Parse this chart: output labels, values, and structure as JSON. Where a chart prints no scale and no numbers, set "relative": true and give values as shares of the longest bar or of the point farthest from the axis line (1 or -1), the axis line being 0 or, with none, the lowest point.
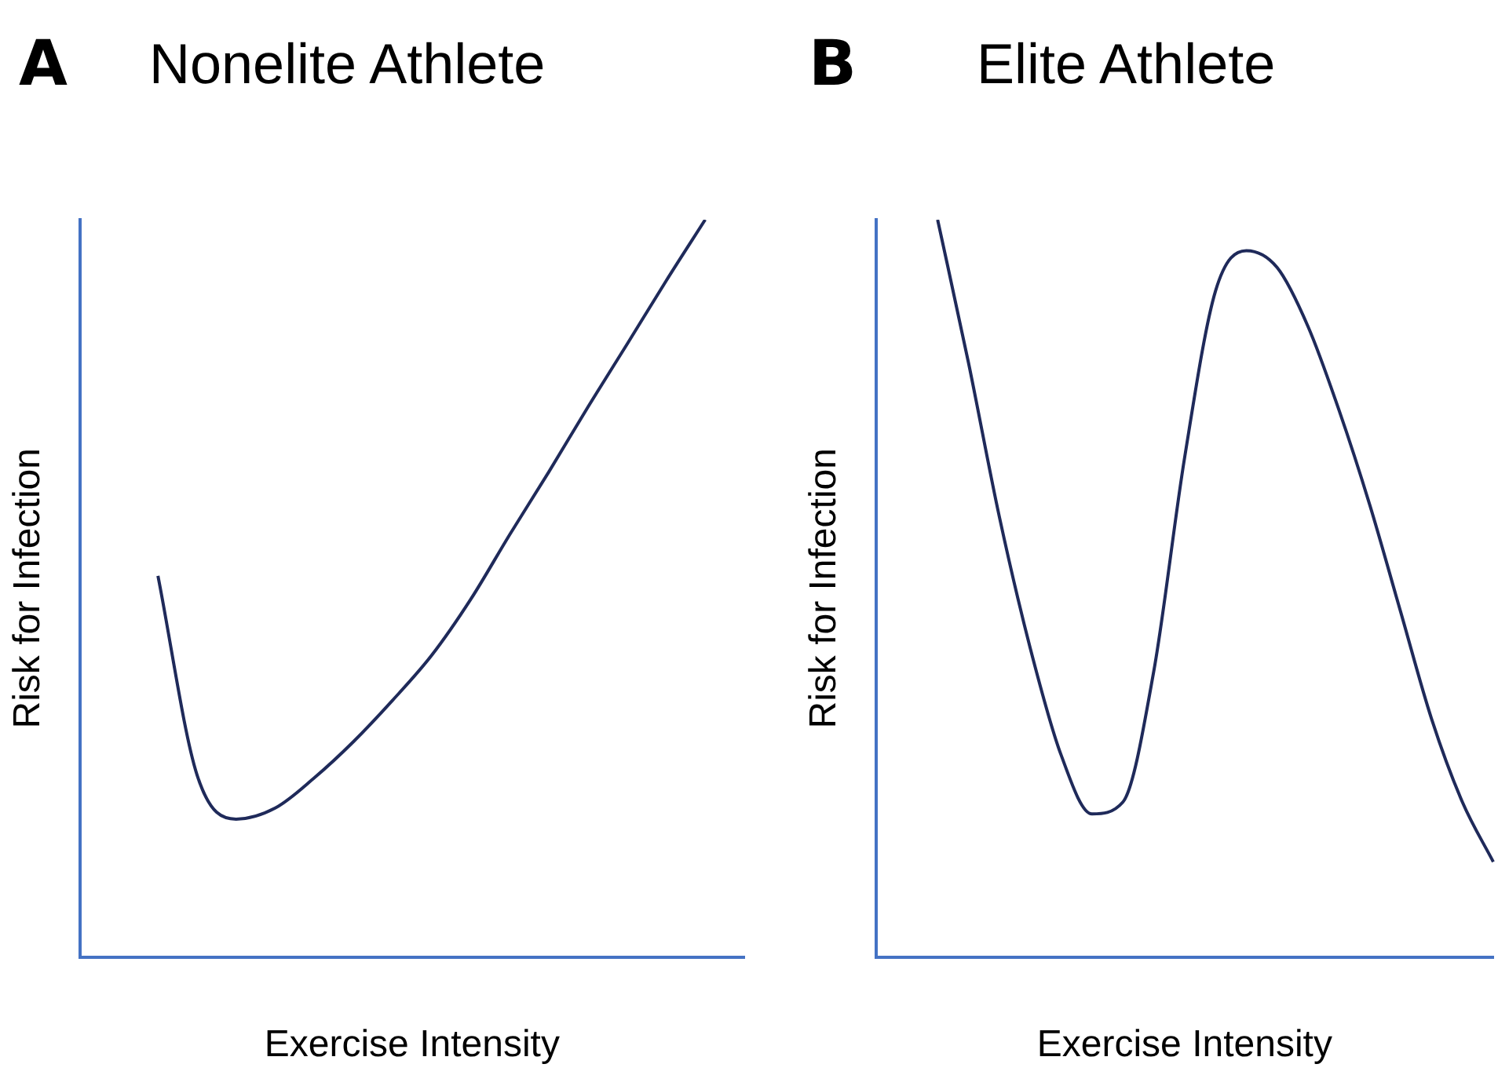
{
  "chart_data": [
    {
      "type": "line",
      "title": "Nonelite Athlete",
      "annotations": [
        "A"
      ],
      "xlabel": "Exercise Intensity",
      "ylabel": "Risk for Infection",
      "relative": true,
      "grid": false,
      "legend": false,
      "marker": "none",
      "line_style": "solid",
      "categories": [
        null,
        null,
        null,
        null,
        null,
        null,
        null,
        null,
        null,
        null,
        null,
        null,
        null,
        null,
        null,
        null,
        null,
        null
      ],
      "series": [
        {
          "color": "#1f2a5a",
          "values": [
            null,
            null,
            0.517,
            0.247,
            0.187,
            0.202,
            0.243,
            0.292,
            0.348,
            0.409,
            0.485,
            0.573,
            0.658,
            0.746,
            0.831,
            0.917,
            1.0,
            null
          ]
        }
      ]
    },
    {
      "type": "line",
      "title": "Elite Athlete",
      "annotations": [
        "B"
      ],
      "xlabel": "Exercise Intensity",
      "ylabel": "Risk for Infection",
      "relative": true,
      "grid": false,
      "legend": false,
      "marker": "none",
      "line_style": "solid",
      "categories": [
        null,
        null,
        null,
        null,
        null,
        null,
        null,
        null,
        null,
        null,
        null,
        null,
        null,
        null,
        null,
        null,
        null,
        null,
        null,
        null,
        null
      ],
      "series": [
        {
          "color": "#1f2a5a",
          "values": [
            null,
            null,
            1.0,
            0.806,
            0.597,
            0.419,
            0.274,
            0.194,
            0.21,
            0.387,
            0.677,
            0.903,
            0.958,
            0.935,
            0.855,
            0.742,
            0.613,
            0.468,
            0.323,
            0.21,
            0.129
          ]
        }
      ]
    }
  ]
}
